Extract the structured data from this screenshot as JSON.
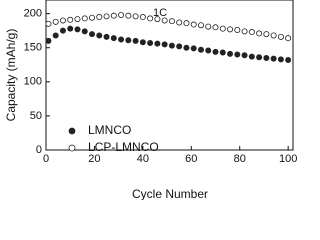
{
  "chart_data": {
    "type": "scatter",
    "annotation": "1C",
    "xlabel": "Cycle Number",
    "ylabel": "Capacity (mAh/g)",
    "x": [
      1,
      4,
      7,
      10,
      13,
      16,
      19,
      22,
      25,
      28,
      31,
      34,
      37,
      40,
      43,
      46,
      49,
      52,
      55,
      58,
      61,
      64,
      67,
      70,
      73,
      76,
      79,
      82,
      85,
      88,
      91,
      94,
      97,
      100
    ],
    "series": [
      {
        "name": "LMNCO",
        "color": "#222222",
        "filled": true,
        "values": [
          160,
          168,
          175,
          178,
          177,
          174,
          170,
          168,
          166,
          164,
          162,
          161,
          160,
          158,
          157,
          156,
          155,
          153,
          152,
          150,
          149,
          147,
          146,
          144,
          143,
          141,
          140,
          139,
          137,
          136,
          135,
          134,
          133,
          132
        ]
      },
      {
        "name": "LCP-LMNCO",
        "color": "#222222",
        "filled": false,
        "values": [
          185,
          188,
          190,
          191,
          192,
          193,
          194,
          195,
          196,
          197,
          198,
          197,
          196,
          195,
          193,
          192,
          190,
          189,
          187,
          186,
          184,
          183,
          181,
          180,
          178,
          177,
          176,
          174,
          173,
          171,
          170,
          168,
          166,
          164
        ]
      }
    ],
    "xlim": [
      0,
      102
    ],
    "ylim": [
      0,
      220
    ],
    "xticks": [
      0,
      20,
      40,
      60,
      80,
      100
    ],
    "yticks": [
      0,
      50,
      100,
      150,
      200
    ]
  }
}
